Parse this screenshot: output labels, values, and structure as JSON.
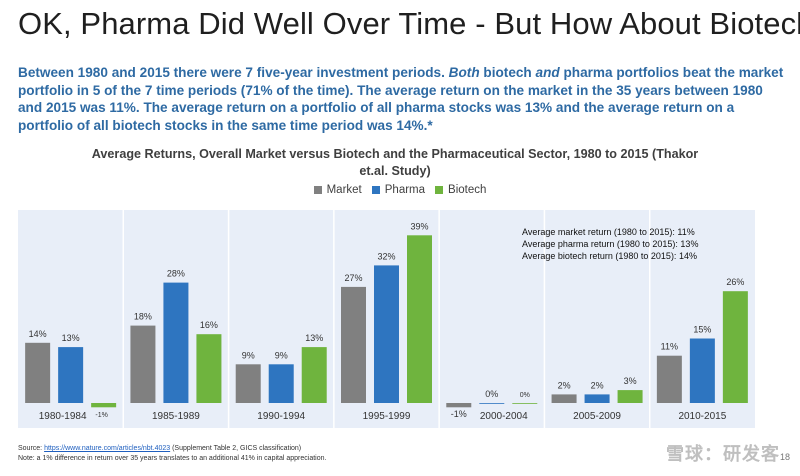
{
  "slide": {
    "title": "OK, Pharma Did Well Over Time - But How About Biotech?",
    "subtitle_parts": [
      {
        "text": "Between 1980 and 2015 there were 7 five-year investment periods. ",
        "italic": false
      },
      {
        "text": "Both",
        "italic": true
      },
      {
        "text": " biotech ",
        "italic": false
      },
      {
        "text": "and",
        "italic": true
      },
      {
        "text": " pharma portfolios beat the market portfolio in 5 of the 7 time periods (71% of the time). The average return on the market in the 35 years between 1980 and 2015 was 11%. The average return on a portfolio of all pharma stocks was 13% and the average return on a portfolio of all biotech stocks in the same time period was 14%.*",
        "italic": false
      }
    ],
    "page_number": "18",
    "watermark": "雪球：研发客"
  },
  "footer": {
    "source_prefix": "Source: ",
    "source_link": "https://www.nature.com/articles/nbt.4023",
    "source_suffix": " (Supplement Table 2, GICS classification)",
    "note": "Note: a 1% difference in return over 35 years translates to an additional 41% in capital appreciation."
  },
  "colors": {
    "market": "#808080",
    "pharma": "#2e75c0",
    "biotech": "#6fb43e",
    "panel_bg": "#e8eef8",
    "divider": "#ffffff"
  },
  "chart_data": {
    "type": "bar",
    "title": "Average Returns, Overall Market versus Biotech and the Pharmaceutical Sector, 1980 to 2015 (Thakor et.al. Study)",
    "xlabel": "",
    "ylabel": "",
    "ylim": [
      -2,
      41
    ],
    "grid": false,
    "legend_position": "top-center",
    "categories": [
      "1980-1984",
      "1985-1989",
      "1990-1994",
      "1995-1999",
      "2000-2004",
      "2005-2009",
      "2010-2015"
    ],
    "series": [
      {
        "name": "Market",
        "values": [
          14,
          18,
          9,
          27,
          -1,
          2,
          11
        ]
      },
      {
        "name": "Pharma",
        "values": [
          13,
          28,
          9,
          32,
          0,
          2,
          15
        ]
      },
      {
        "name": "Biotech",
        "values": [
          -1,
          16,
          13,
          39,
          0,
          3,
          26
        ]
      }
    ],
    "value_labels": [
      [
        "14%",
        "18%",
        "9%",
        "27%",
        "-1%",
        "2%",
        "11%"
      ],
      [
        "13%",
        "28%",
        "9%",
        "32%",
        "0%",
        "2%",
        "15%"
      ],
      [
        "-1%",
        "16%",
        "13%",
        "39%",
        "0%",
        "3%",
        "26%"
      ]
    ],
    "annotation_lines": [
      "Average market return (1980 to 2015): 11%",
      "Average pharma return (1980 to 2015): 13%",
      "Average biotech return (1980 to 2015): 14%"
    ]
  }
}
